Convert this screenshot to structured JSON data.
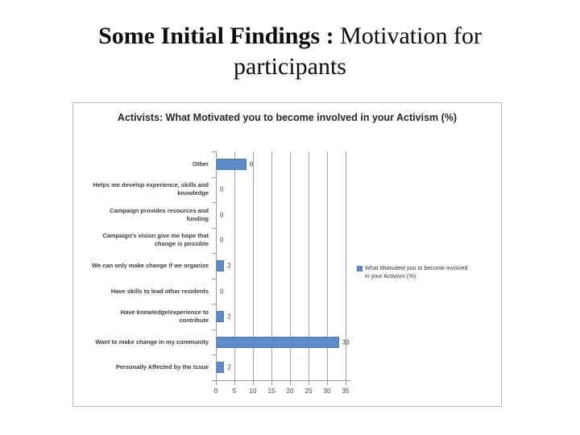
{
  "slide_title": {
    "bold": "Some Initial Findings :",
    "regular": "Motivation for",
    "line2": "participants"
  },
  "chart_data": {
    "type": "bar",
    "orientation": "horizontal",
    "title": "Activists: What Motivated you to become involved in your Activism (%)",
    "categories": [
      "Other",
      "Helps me develop experience, skills and knowledge",
      "Campaign provides resources and funding",
      "Campaign's vision give me hope that change is possible",
      "We can only make change if we organize",
      "Have skills to lead other residents",
      "Have knowledge/experience to contribute",
      "Want to make change in my community",
      "Personally Affected by the Issue"
    ],
    "category_label_lines": [
      [
        "Other"
      ],
      [
        "Helps me develop experience, skills and",
        "knowledge"
      ],
      [
        "Campaign provides resources and",
        "funding"
      ],
      [
        "Campaign's vision give me hope that",
        "change is possible"
      ],
      [
        "We can only make change if we organize"
      ],
      [
        "Have skills to lead other residents"
      ],
      [
        "Have knowledge/experience to",
        "contribute"
      ],
      [
        "Want to make change in my community"
      ],
      [
        "Personally Affected by the Issue"
      ]
    ],
    "values": [
      8,
      0,
      0,
      0,
      2,
      0,
      2,
      33,
      2
    ],
    "xlabel": "",
    "ylabel": "",
    "xlim": [
      0,
      35
    ],
    "xticks": [
      0,
      5,
      10,
      15,
      20,
      25,
      30,
      35
    ],
    "grid": true,
    "legend_position": "right",
    "legend": [
      "What Motivated you to become involved in your Activism (%)"
    ],
    "legend_lines": [
      "What Motivated you to become involved",
      "in your Activism (%)"
    ],
    "bar_color": "#5b8cc6",
    "gridline_color": "#a3a3a3",
    "axis_color": "#9a9a9a",
    "title_color": "#262626"
  }
}
